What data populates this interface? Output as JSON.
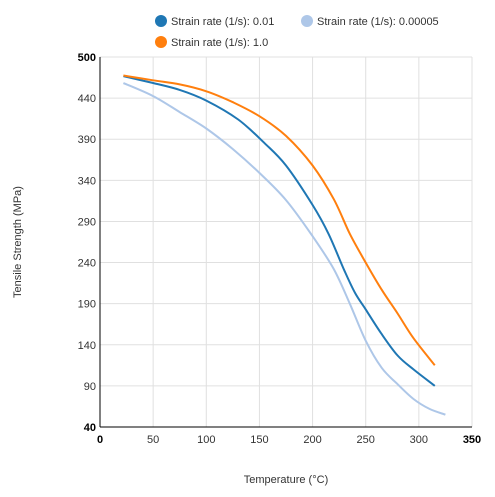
{
  "chart_data": {
    "type": "line",
    "xlabel": "Temperature (°C)",
    "ylabel": "Tensile Strength (MPa)",
    "xlim": [
      0,
      350
    ],
    "ylim": [
      40,
      500
    ],
    "x_ticks": [
      0,
      50,
      100,
      150,
      200,
      250,
      300,
      350
    ],
    "y_ticks": [
      40,
      90,
      140,
      190,
      240,
      290,
      340,
      390,
      440,
      500
    ],
    "grid": true,
    "legend_position": "top",
    "series": [
      {
        "name": "Strain rate (1/s): 0.01",
        "color": "#1f77b4",
        "x": [
          22,
          50,
          75,
          100,
          130,
          155,
          175,
          200,
          215,
          230,
          240,
          250,
          265,
          280,
          295,
          315
        ],
        "y": [
          472,
          462,
          452,
          437,
          414,
          385,
          358,
          310,
          275,
          230,
          203,
          183,
          153,
          127,
          110,
          90
        ]
      },
      {
        "name": "Strain rate (1/s): 0.00005",
        "color": "#aec7e8",
        "x": [
          22,
          50,
          75,
          100,
          125,
          150,
          175,
          200,
          220,
          235,
          250,
          265,
          280,
          295,
          310,
          325
        ],
        "y": [
          462,
          443,
          423,
          403,
          378,
          349,
          316,
          272,
          232,
          190,
          145,
          112,
          92,
          74,
          62,
          55
        ]
      },
      {
        "name": "Strain rate (1/s): 1.0",
        "color": "#ff7f0e",
        "x": [
          22,
          50,
          75,
          100,
          125,
          150,
          175,
          200,
          220,
          235,
          250,
          265,
          280,
          295,
          315
        ],
        "y": [
          473,
          466,
          460,
          450,
          435,
          418,
          394,
          358,
          317,
          275,
          240,
          207,
          178,
          148,
          115
        ]
      }
    ]
  }
}
